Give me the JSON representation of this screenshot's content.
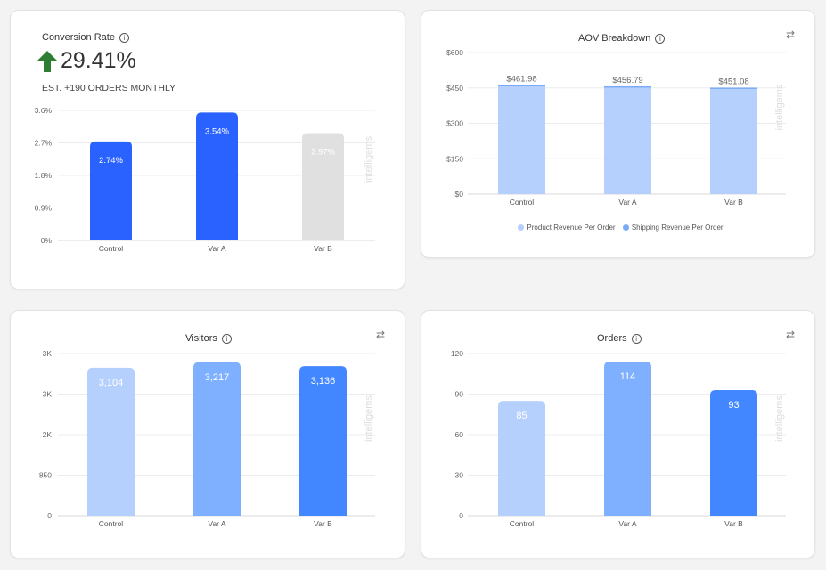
{
  "conversion": {
    "title": "Conversion Rate",
    "lift": "29.41%",
    "estimate": "EST. +190 ORDERS MONTHLY"
  },
  "aov": {
    "title": "AOV Breakdown",
    "legend": [
      "Product Revenue Per Order",
      "Shipping Revenue Per Order"
    ]
  },
  "visitors": {
    "title": "Visitors"
  },
  "orders": {
    "title": "Orders"
  },
  "watermark": "intelligems",
  "colors": {
    "primary": "#2962ff",
    "light": "#b6d0fe",
    "mid": "#7fb0ff",
    "dark": "#4287ff",
    "gray": "#e0e0e0",
    "up": "#2e7d32"
  },
  "chart_data": [
    {
      "type": "bar",
      "title": "Conversion Rate",
      "categories": [
        "Control",
        "Var A",
        "Var B"
      ],
      "values": [
        2.74,
        3.54,
        2.97
      ],
      "data_labels": [
        "2.74%",
        "3.54%",
        "2.97%"
      ],
      "yticks": [
        "0%",
        "0.9%",
        "1.8%",
        "2.7%",
        "3.6%"
      ],
      "ylim": [
        0,
        3.6
      ],
      "colors": [
        "#2962ff",
        "#2962ff",
        "#e0e0e0"
      ]
    },
    {
      "type": "bar",
      "stacked": true,
      "title": "AOV Breakdown",
      "categories": [
        "Control",
        "Var A",
        "Var B"
      ],
      "series": [
        {
          "name": "Product Revenue Per Order",
          "values": [
            458.0,
            452.8,
            447.1
          ],
          "color": "#b6d0fe"
        },
        {
          "name": "Shipping Revenue Per Order",
          "values": [
            4.0,
            4.0,
            4.0
          ],
          "color": "#7baaf7"
        }
      ],
      "data_labels": [
        "$461.98",
        "$456.79",
        "$451.08"
      ],
      "yticks": [
        "$0",
        "$150",
        "$300",
        "$450",
        "$600"
      ],
      "ylim": [
        0,
        600
      ],
      "legend": "bottom"
    },
    {
      "type": "bar",
      "title": "Visitors",
      "categories": [
        "Control",
        "Var A",
        "Var B"
      ],
      "values": [
        3104,
        3217,
        3136
      ],
      "data_labels": [
        "3,104",
        "3,217",
        "3,136"
      ],
      "yticks": [
        "0",
        "850",
        "2K",
        "3K",
        "3K"
      ],
      "ylim": [
        0,
        3400
      ],
      "colors": [
        "#b6d0fe",
        "#7fb0ff",
        "#4287ff"
      ]
    },
    {
      "type": "bar",
      "title": "Orders",
      "categories": [
        "Control",
        "Var A",
        "Var B"
      ],
      "values": [
        85,
        114,
        93
      ],
      "data_labels": [
        "85",
        "114",
        "93"
      ],
      "yticks": [
        "0",
        "30",
        "60",
        "90",
        "120"
      ],
      "ylim": [
        0,
        120
      ],
      "colors": [
        "#b6d0fe",
        "#7fb0ff",
        "#4287ff"
      ]
    }
  ]
}
